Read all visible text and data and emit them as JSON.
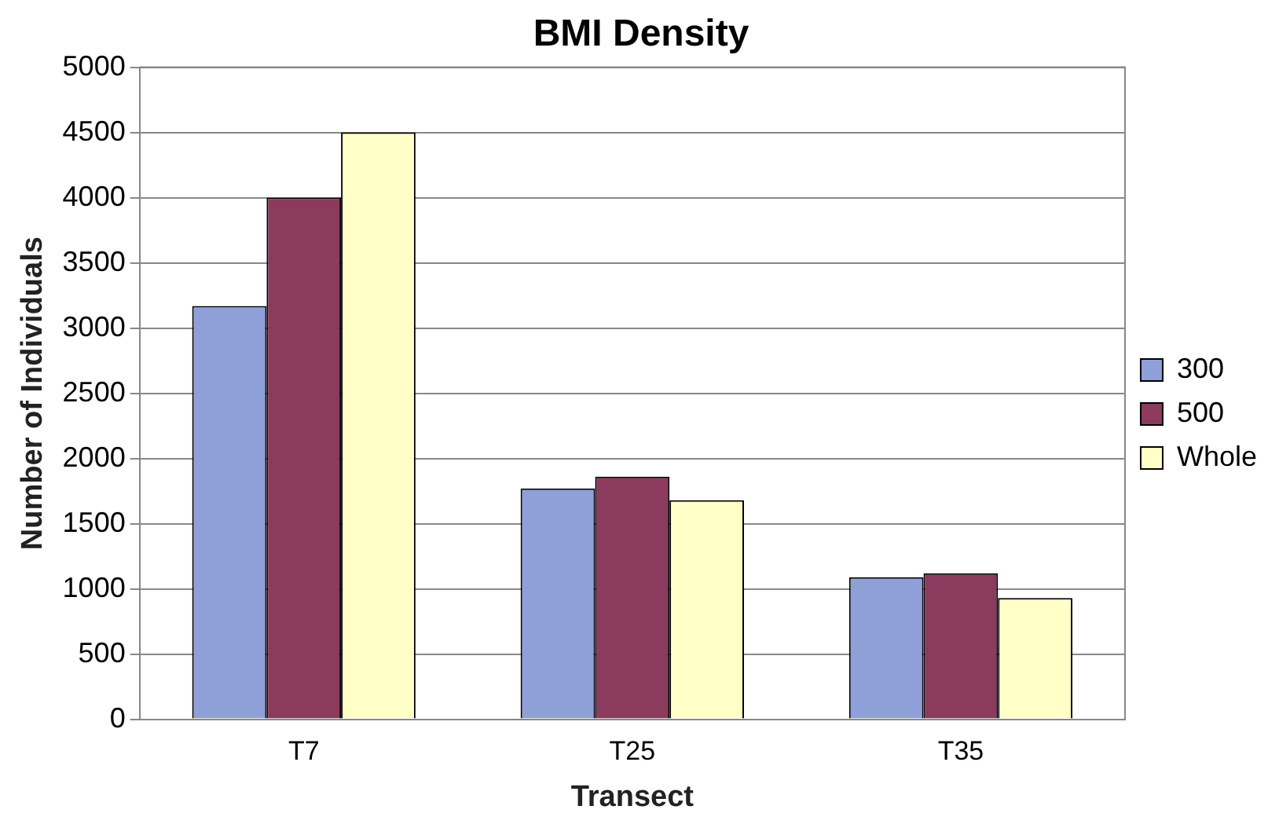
{
  "chart_data": {
    "type": "bar",
    "title": "BMI Density",
    "xlabel": "Transect",
    "ylabel": "Number of Individuals",
    "categories": [
      "T7",
      "T25",
      "T35"
    ],
    "series": [
      {
        "name": "300",
        "color": "#8f9fd8",
        "values": [
          3170,
          1770,
          1090
        ]
      },
      {
        "name": "500",
        "color": "#8c3a5e",
        "values": [
          4000,
          1860,
          1120
        ]
      },
      {
        "name": "Whole",
        "color": "#ffffc8",
        "values": [
          4500,
          1680,
          930
        ]
      }
    ],
    "ylim": [
      0,
      5000
    ],
    "yticks": [
      0,
      500,
      1000,
      1500,
      2000,
      2500,
      3000,
      3500,
      4000,
      4500,
      5000
    ],
    "grid": "y",
    "legend": "right"
  }
}
